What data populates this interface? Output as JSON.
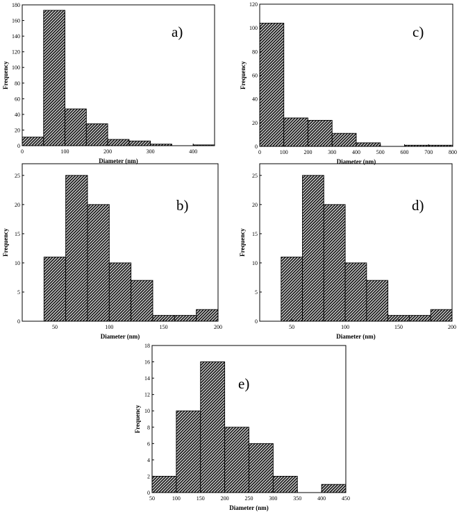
{
  "chart_data": [
    {
      "type": "bar",
      "panel_label": "a)",
      "xlabel": "Diameter (nm)",
      "ylabel": "Frequency",
      "xlim": [
        0,
        450
      ],
      "ylim": [
        0,
        180
      ],
      "xticks": [
        0,
        100,
        200,
        300,
        400
      ],
      "yticks": [
        0,
        20,
        40,
        60,
        80,
        100,
        120,
        140,
        160,
        180
      ],
      "bins": [
        {
          "x0": 0,
          "x1": 50,
          "value": 11
        },
        {
          "x0": 50,
          "x1": 100,
          "value": 173
        },
        {
          "x0": 100,
          "x1": 150,
          "value": 47
        },
        {
          "x0": 150,
          "x1": 200,
          "value": 28
        },
        {
          "x0": 200,
          "x1": 250,
          "value": 8
        },
        {
          "x0": 250,
          "x1": 300,
          "value": 6
        },
        {
          "x0": 300,
          "x1": 350,
          "value": 2
        },
        {
          "x0": 350,
          "x1": 400,
          "value": 0
        },
        {
          "x0": 400,
          "x1": 450,
          "value": 1
        }
      ]
    },
    {
      "type": "bar",
      "panel_label": "c)",
      "xlabel": "Diameter (nm)",
      "ylabel": "Frequency",
      "xlim": [
        0,
        800
      ],
      "ylim": [
        0,
        120
      ],
      "xticks": [
        0,
        100,
        200,
        300,
        400,
        500,
        600,
        700,
        800
      ],
      "yticks": [
        0,
        20,
        40,
        60,
        80,
        100,
        120
      ],
      "bins": [
        {
          "x0": 0,
          "x1": 100,
          "value": 104
        },
        {
          "x0": 100,
          "x1": 200,
          "value": 24
        },
        {
          "x0": 200,
          "x1": 300,
          "value": 22
        },
        {
          "x0": 300,
          "x1": 400,
          "value": 11
        },
        {
          "x0": 400,
          "x1": 500,
          "value": 3
        },
        {
          "x0": 500,
          "x1": 600,
          "value": 0
        },
        {
          "x0": 600,
          "x1": 700,
          "value": 1
        },
        {
          "x0": 700,
          "x1": 800,
          "value": 1
        }
      ]
    },
    {
      "type": "bar",
      "panel_label": "b)",
      "xlabel": "Diameter (nm)",
      "ylabel": "Frequency",
      "xlim": [
        20,
        200
      ],
      "ylim": [
        0,
        27
      ],
      "xticks": [
        50,
        100,
        150,
        200
      ],
      "yticks": [
        0,
        5,
        10,
        15,
        20,
        25
      ],
      "bins": [
        {
          "x0": 40,
          "x1": 60,
          "value": 11
        },
        {
          "x0": 60,
          "x1": 80,
          "value": 25
        },
        {
          "x0": 80,
          "x1": 100,
          "value": 20
        },
        {
          "x0": 100,
          "x1": 120,
          "value": 10
        },
        {
          "x0": 120,
          "x1": 140,
          "value": 7
        },
        {
          "x0": 140,
          "x1": 160,
          "value": 1
        },
        {
          "x0": 160,
          "x1": 180,
          "value": 1
        },
        {
          "x0": 180,
          "x1": 200,
          "value": 2
        }
      ]
    },
    {
      "type": "bar",
      "panel_label": "d)",
      "xlabel": "Diameter (nm)",
      "ylabel": "Frequency",
      "xlim": [
        20,
        200
      ],
      "ylim": [
        0,
        27
      ],
      "xticks": [
        50,
        100,
        150,
        200
      ],
      "yticks": [
        0,
        5,
        10,
        15,
        20,
        25
      ],
      "bins": [
        {
          "x0": 40,
          "x1": 60,
          "value": 11
        },
        {
          "x0": 60,
          "x1": 80,
          "value": 25
        },
        {
          "x0": 80,
          "x1": 100,
          "value": 20
        },
        {
          "x0": 100,
          "x1": 120,
          "value": 10
        },
        {
          "x0": 120,
          "x1": 140,
          "value": 7
        },
        {
          "x0": 140,
          "x1": 160,
          "value": 1
        },
        {
          "x0": 160,
          "x1": 180,
          "value": 1
        },
        {
          "x0": 180,
          "x1": 200,
          "value": 2
        }
      ]
    },
    {
      "type": "bar",
      "panel_label": "e)",
      "xlabel": "Diameter (nm)",
      "ylabel": "Frequency",
      "xlim": [
        50,
        450
      ],
      "ylim": [
        0,
        18
      ],
      "xticks": [
        50,
        100,
        150,
        200,
        250,
        300,
        350,
        400,
        450
      ],
      "yticks": [
        0,
        2,
        4,
        6,
        8,
        10,
        12,
        14,
        16,
        18
      ],
      "bins": [
        {
          "x0": 50,
          "x1": 100,
          "value": 2
        },
        {
          "x0": 100,
          "x1": 150,
          "value": 10
        },
        {
          "x0": 150,
          "x1": 200,
          "value": 16
        },
        {
          "x0": 200,
          "x1": 250,
          "value": 8
        },
        {
          "x0": 250,
          "x1": 300,
          "value": 6
        },
        {
          "x0": 300,
          "x1": 350,
          "value": 2
        },
        {
          "x0": 350,
          "x1": 400,
          "value": 0
        },
        {
          "x0": 400,
          "x1": 450,
          "value": 1
        }
      ]
    }
  ]
}
